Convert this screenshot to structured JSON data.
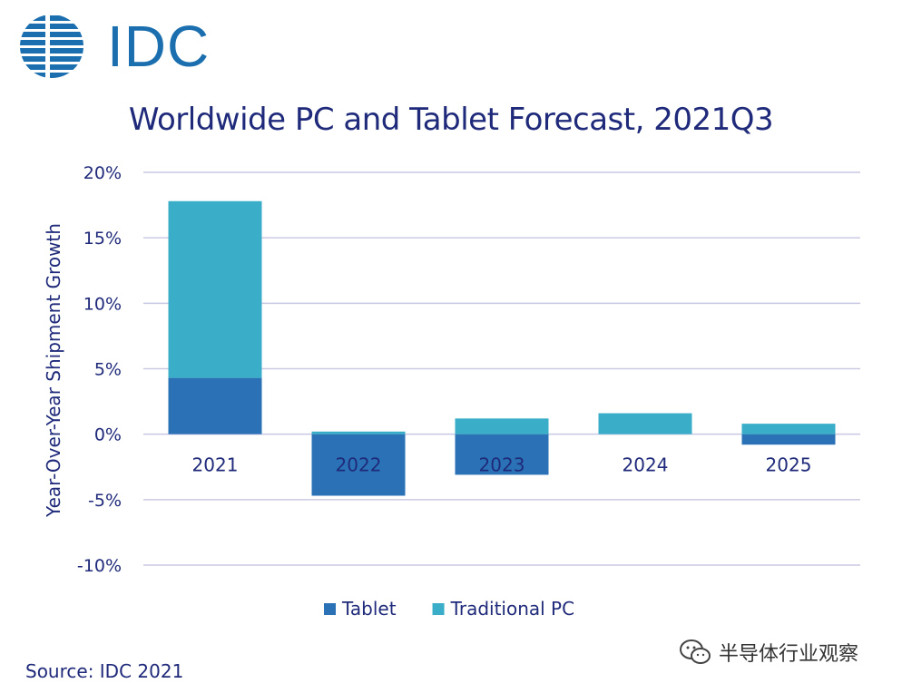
{
  "brand": {
    "logo_text": "IDC",
    "logo_color": "#1b6fae"
  },
  "chart_data": {
    "type": "bar",
    "stacked": true,
    "title": "Worldwide PC and Tablet Forecast, 2021Q3",
    "ylabel": "Year-Over-Year  Shipment  Growth",
    "xlabel": "",
    "categories": [
      "2021",
      "2022",
      "2023",
      "2024",
      "2025"
    ],
    "series": [
      {
        "name": "Tablet",
        "color": "#2a72b5",
        "values": [
          4.3,
          -4.7,
          -3.1,
          0.0,
          -0.8
        ]
      },
      {
        "name": "Traditional PC",
        "color": "#3aaec8",
        "values": [
          13.5,
          0.2,
          1.2,
          1.6,
          0.8
        ]
      }
    ],
    "ylim": [
      -10,
      20
    ],
    "yticks": [
      20,
      15,
      10,
      5,
      0,
      -5,
      -10
    ],
    "ytick_labels": [
      "20%",
      "15%",
      "10%",
      "5%",
      "0%",
      "-5%",
      "-10%"
    ],
    "grid": true,
    "legend_position": "bottom"
  },
  "source": "Source: IDC 2021",
  "watermark": {
    "text": "半导体行业观察",
    "icon": "wechat-icon"
  }
}
